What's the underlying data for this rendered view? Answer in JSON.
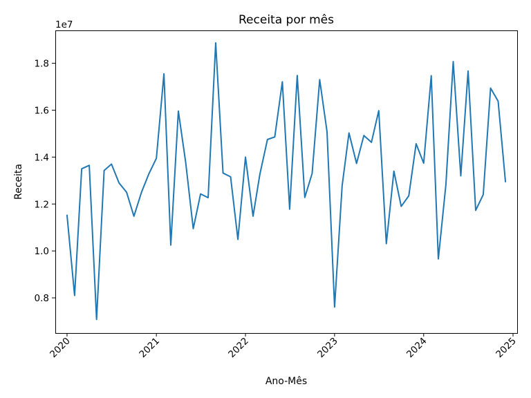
{
  "chart_data": {
    "type": "line",
    "title": "Receita por mês",
    "xlabel": "Ano-Mês",
    "ylabel": "Receita",
    "y_scale_label": "1e7",
    "y_multiplier": 10000000,
    "xlim": [
      "2019-11-14",
      "2025-01-18"
    ],
    "ylim": [
      0.65,
      1.94
    ],
    "x_ticks": [
      {
        "date": "2020-01-01",
        "label": "2020"
      },
      {
        "date": "2021-01-01",
        "label": "2021"
      },
      {
        "date": "2022-01-01",
        "label": "2022"
      },
      {
        "date": "2023-01-01",
        "label": "2023"
      },
      {
        "date": "2024-01-01",
        "label": "2024"
      },
      {
        "date": "2025-01-01",
        "label": "2025"
      }
    ],
    "y_ticks": [
      {
        "value": 0.8,
        "label": "0.8"
      },
      {
        "value": 1.0,
        "label": "1.0"
      },
      {
        "value": 1.2,
        "label": "1.2"
      },
      {
        "value": 1.4,
        "label": "1.4"
      },
      {
        "value": 1.6,
        "label": "1.6"
      },
      {
        "value": 1.8,
        "label": "1.8"
      }
    ],
    "grid": false,
    "legend": "none",
    "color": "#1f77b4",
    "series": [
      {
        "x": [
          "2020-01-01",
          "2020-02-01",
          "2020-03-01",
          "2020-04-01",
          "2020-05-01",
          "2020-06-01",
          "2020-07-01",
          "2020-08-01",
          "2020-09-01",
          "2020-10-01",
          "2020-11-01",
          "2020-12-01",
          "2021-01-01",
          "2021-02-01",
          "2021-03-01",
          "2021-04-01",
          "2021-05-01",
          "2021-06-01",
          "2021-07-01",
          "2021-08-01",
          "2021-09-01",
          "2021-10-01",
          "2021-11-01",
          "2021-12-01",
          "2022-01-01",
          "2022-02-01",
          "2022-03-01",
          "2022-04-01",
          "2022-05-01",
          "2022-06-01",
          "2022-07-01",
          "2022-08-01",
          "2022-09-01",
          "2022-10-01",
          "2022-11-01",
          "2022-12-01",
          "2023-01-01",
          "2023-02-01",
          "2023-03-01",
          "2023-04-01",
          "2023-05-01",
          "2023-06-01",
          "2023-07-01",
          "2023-08-01",
          "2023-09-01",
          "2023-10-01",
          "2023-11-01",
          "2023-12-01",
          "2024-01-01",
          "2024-02-01",
          "2024-03-01",
          "2024-04-01",
          "2024-05-01",
          "2024-06-01",
          "2024-07-01",
          "2024-08-01",
          "2024-09-01",
          "2024-10-01",
          "2024-11-01",
          "2024-12-01"
        ],
        "y": [
          1.152,
          0.81,
          1.35,
          1.365,
          0.708,
          1.343,
          1.37,
          1.29,
          1.25,
          1.148,
          1.25,
          1.328,
          1.395,
          1.755,
          1.025,
          1.596,
          1.378,
          1.095,
          1.243,
          1.227,
          1.887,
          1.332,
          1.316,
          1.049,
          1.4,
          1.148,
          1.327,
          1.475,
          1.486,
          1.721,
          1.178,
          1.748,
          1.228,
          1.33,
          1.73,
          1.509,
          0.761,
          1.278,
          1.503,
          1.373,
          1.492,
          1.463,
          1.598,
          1.031,
          1.34,
          1.19,
          1.235,
          1.457,
          1.374,
          1.747,
          0.966,
          1.282,
          1.807,
          1.32,
          1.767,
          1.173,
          1.24,
          1.694,
          1.638,
          1.295
        ]
      }
    ]
  }
}
